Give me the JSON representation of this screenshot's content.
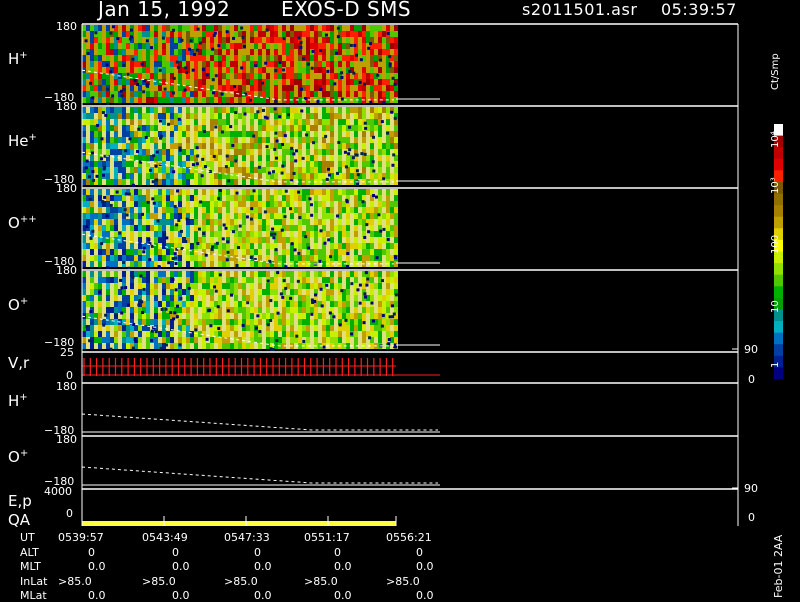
{
  "header": {
    "date": "Jan 15, 1992",
    "instrument": "EXOS-D SMS",
    "filename": "s2011501.asr",
    "time": "05:39:57"
  },
  "colorbar": {
    "unit": "Ct/Smp",
    "labels": [
      "10⁴",
      "10³",
      "100",
      "10",
      "1"
    ],
    "colors": [
      "#ffffff",
      "#a00000",
      "#c00000",
      "#e00000",
      "#ff2000",
      "#7a5a00",
      "#907000",
      "#a88000",
      "#c0a000",
      "#e0d000",
      "#ffff00",
      "#c8f000",
      "#90e000",
      "#50c800",
      "#00b000",
      "#00a000",
      "#009090",
      "#00b0c0",
      "#0070c0",
      "#0040a0",
      "#002090",
      "#000080"
    ]
  },
  "panels": [
    {
      "base": "H",
      "charge": "+",
      "ymax": "180",
      "ymin": "−180"
    },
    {
      "base": "He",
      "charge": "+",
      "ymax": "180",
      "ymin": "−180"
    },
    {
      "base": "O",
      "charge": "++",
      "ymax": "180",
      "ymin": "−180"
    },
    {
      "base": "O",
      "charge": "+",
      "ymax": "180",
      "ymin": "−180"
    }
  ],
  "vr": {
    "label": "V,r",
    "ymax": "25",
    "ymin": "0",
    "right_top": "90",
    "right_bottom": "0"
  },
  "lower": [
    {
      "base": "H",
      "charge": "+",
      "ymax": "180",
      "ymin": "−180"
    },
    {
      "base": "O",
      "charge": "+",
      "ymax": "180",
      "ymin": "−180"
    }
  ],
  "ep": {
    "label": "E,p",
    "ymax": "4000",
    "ymin": "0",
    "right_top": "90",
    "right_bottom": "0"
  },
  "qa": {
    "label": "QA"
  },
  "footer_table": {
    "rows": [
      {
        "label": "UT",
        "values": [
          "0539:57",
          "0543:49",
          "0547:33",
          "0551:17",
          "0556:21"
        ]
      },
      {
        "label": "ALT",
        "values": [
          "0",
          "0",
          "0",
          "0",
          "0"
        ]
      },
      {
        "label": "MLT",
        "values": [
          "0.0",
          "0.0",
          "0.0",
          "0.0",
          "0.0"
        ]
      },
      {
        "label": "InLat",
        "values": [
          ">85.0",
          ">85.0",
          ">85.0",
          ">85.0",
          ">85.0"
        ]
      },
      {
        "label": "MLat",
        "values": [
          "0.0",
          "0.0",
          "0.0",
          "0.0",
          "0.0"
        ]
      }
    ]
  },
  "side_note": "Feb-01 2AA",
  "chart_data": [
    {
      "type": "heatmap",
      "series_name": "H+",
      "ylim": [
        -180,
        180
      ],
      "level": "mixed red/orange"
    },
    {
      "type": "heatmap",
      "series_name": "He+",
      "ylim": [
        -180,
        180
      ],
      "level": "green/yellow"
    },
    {
      "type": "heatmap",
      "series_name": "O++",
      "ylim": [
        -180,
        180
      ],
      "level": "green/blue"
    },
    {
      "type": "heatmap",
      "series_name": "O+",
      "ylim": [
        -180,
        180
      ],
      "level": "green/blue"
    },
    {
      "type": "line",
      "series_name": "V,r",
      "ylim": [
        0,
        25
      ]
    },
    {
      "type": "line",
      "series_name": "H+ (lower)",
      "ylim": [
        -180,
        180
      ]
    },
    {
      "type": "line",
      "series_name": "O+ (lower)",
      "ylim": [
        -180,
        180
      ]
    },
    {
      "type": "line",
      "series_name": "E,p",
      "ylim": [
        0,
        4000
      ]
    }
  ]
}
